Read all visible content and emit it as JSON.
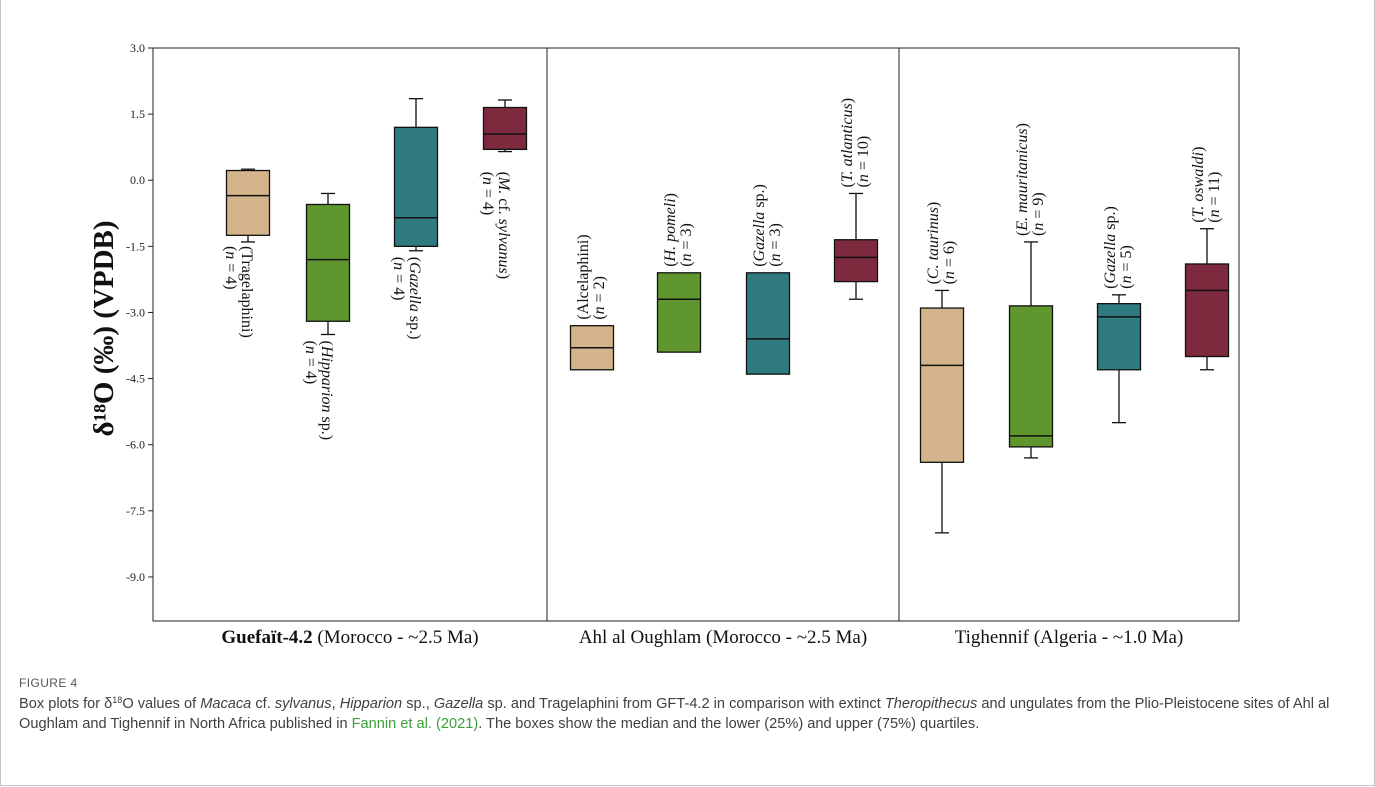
{
  "figure": {
    "label": "FIGURE 4",
    "caption_parts": [
      {
        "text": "Box plots for δ",
        "style": "normal"
      },
      {
        "text": "18",
        "style": "sup"
      },
      {
        "text": "O values of ",
        "style": "normal"
      },
      {
        "text": "Macaca",
        "style": "italic"
      },
      {
        "text": " cf. ",
        "style": "normal"
      },
      {
        "text": "sylvanus",
        "style": "italic"
      },
      {
        "text": ", ",
        "style": "normal"
      },
      {
        "text": "Hipparion",
        "style": "italic"
      },
      {
        "text": " sp., ",
        "style": "normal"
      },
      {
        "text": "Gazella",
        "style": "italic"
      },
      {
        "text": " sp. and Tragelaphini from GFT-4.2 in comparison with extinct ",
        "style": "normal"
      },
      {
        "text": "Theropithecus",
        "style": "italic"
      },
      {
        "text": " and ungulates from the Plio-Pleistocene sites of Ahl al Oughlam and Tighennif in North Africa published in ",
        "style": "normal"
      },
      {
        "text": "Fannin et al. (2021)",
        "style": "link"
      },
      {
        "text": ". The boxes show the median and the lower (25%) and upper (75%) quartiles.",
        "style": "normal"
      }
    ]
  },
  "chart_data": {
    "type": "box",
    "ylabel": "δ¹⁸O (‰) (VPDB)",
    "ylim": [
      -10.0,
      3.0
    ],
    "yticks": [
      "3.0",
      "1.5",
      "0.0",
      "-1.5",
      "-3.0",
      "-4.5",
      "-6.0",
      "-7.5",
      "-9.0"
    ],
    "ytick_values": [
      3.0,
      1.5,
      0.0,
      -1.5,
      -3.0,
      -4.5,
      -6.0,
      -7.5,
      -9.0
    ],
    "colors": {
      "Tragelaphini": "#d4b48a",
      "Hipparion": "#5f962e",
      "Gazella": "#2f7a7e",
      "Primate": "#7d2a3e"
    },
    "panels": [
      {
        "site": "Guefaït-4.2",
        "site_bold": true,
        "site_suffix": " (Morocco - ~2.5 Ma)",
        "boxes": [
          {
            "taxon": "Tragelaphini",
            "color_key": "Tragelaphini",
            "label_name": "(Tragelaphini)",
            "label_italic": false,
            "label_n": "(n = 4)",
            "whisker_low": -1.4,
            "q1": -1.25,
            "median": -0.35,
            "q3": 0.22,
            "whisker_high": 0.25
          },
          {
            "taxon": "Hipparion sp.",
            "color_key": "Hipparion",
            "label_name": "(Hipparion sp.)",
            "label_italic": false,
            "label_n": "(n = 4)",
            "whisker_low": -3.5,
            "q1": -3.2,
            "median": -1.8,
            "q3": -0.55,
            "whisker_high": -0.3
          },
          {
            "taxon": "Gazella sp.",
            "color_key": "Gazella",
            "label_name": "(Gazella sp.)",
            "label_italic": false,
            "label_n": "(n = 4)",
            "whisker_low": -1.6,
            "q1": -1.5,
            "median": -0.85,
            "q3": 1.2,
            "whisker_high": 1.85
          },
          {
            "taxon": "M. cf. sylvanus",
            "color_key": "Primate",
            "label_name": "(M. cf. sylvanus)",
            "label_italic": false,
            "label_n": "(n = 4)",
            "whisker_low": 0.65,
            "q1": 0.7,
            "median": 1.05,
            "q3": 1.65,
            "whisker_high": 1.82
          }
        ]
      },
      {
        "site": "Ahl al Oughlam",
        "site_bold": false,
        "site_suffix": " (Morocco - ~2.5 Ma)",
        "boxes": [
          {
            "taxon": "Alcelaphini",
            "color_key": "Tragelaphini",
            "label_name": "(Alcelaphini)",
            "label_n": "(n = 2)",
            "whisker_low": -4.3,
            "q1": -4.3,
            "median": -3.8,
            "q3": -3.3,
            "whisker_high": -3.3
          },
          {
            "taxon": "H. pomeli",
            "color_key": "Hipparion",
            "label_name": "(H. pomeli)",
            "label_n": "(n = 3)",
            "whisker_low": -3.9,
            "q1": -3.9,
            "median": -2.7,
            "q3": -2.1,
            "whisker_high": -2.1
          },
          {
            "taxon": "Gazella sp.",
            "color_key": "Gazella",
            "label_name": "(Gazella sp.)",
            "label_n": "(n = 3)",
            "whisker_low": -4.4,
            "q1": -4.4,
            "median": -3.6,
            "q3": -2.1,
            "whisker_high": -2.1
          },
          {
            "taxon": "T. atlanticus",
            "color_key": "Primate",
            "label_name": "(T. atlanticus)",
            "label_n": "(n = 10)",
            "whisker_low": -2.7,
            "q1": -2.3,
            "median": -1.75,
            "q3": -1.35,
            "whisker_high": -0.3
          }
        ]
      },
      {
        "site": "Tighennif",
        "site_bold": false,
        "site_suffix": " (Algeria - ~1.0 Ma)",
        "boxes": [
          {
            "taxon": "C. taurinus",
            "color_key": "Tragelaphini",
            "label_name": "(C. taurinus)",
            "label_n": "(n = 6)",
            "whisker_low": -8.0,
            "q1": -6.4,
            "median": -4.2,
            "q3": -2.9,
            "whisker_high": -2.5
          },
          {
            "taxon": "E. mauritanicus",
            "color_key": "Hipparion",
            "label_name": "(E. mauritanicus)",
            "label_n": "(n = 9)",
            "whisker_low": -6.3,
            "q1": -6.05,
            "median": -5.8,
            "q3": -2.85,
            "whisker_high": -1.4
          },
          {
            "taxon": "Gazella sp.",
            "color_key": "Gazella",
            "label_name": "(Gazella sp.)",
            "label_n": "(n = 5)",
            "whisker_low": -5.5,
            "q1": -4.3,
            "median": -3.1,
            "q3": -2.8,
            "whisker_high": -2.6
          },
          {
            "taxon": "T. oswaldi",
            "color_key": "Primate",
            "label_name": "(T. oswaldi)",
            "label_n": "(n = 11)",
            "whisker_low": -4.3,
            "q1": -4.0,
            "median": -2.5,
            "q3": -1.9,
            "whisker_high": -1.1
          }
        ]
      }
    ]
  }
}
